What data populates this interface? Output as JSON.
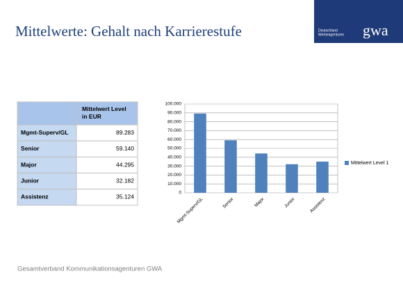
{
  "title": "Mittelwerte: Gehalt nach Karrierestufe",
  "logo": {
    "line1": "Deutschland",
    "line2": "Werbeagenturen",
    "mark": "gwa"
  },
  "table": {
    "header": [
      "",
      "Mittelwert Level in EUR"
    ],
    "rows": [
      [
        "Mgmt-Superv/GL",
        "89.283"
      ],
      [
        "Senior",
        "59.140"
      ],
      [
        "Major",
        "44.295"
      ],
      [
        "Junior",
        "32.182"
      ],
      [
        "Assistenz",
        "35.124"
      ]
    ]
  },
  "footer": "Gesamtverband Kommunikationsagenturen GWA",
  "chart_data": {
    "type": "bar",
    "categories": [
      "Mgmt-Superv/GL",
      "Senior",
      "Major",
      "Junior",
      "Assistenz"
    ],
    "series": [
      {
        "name": "Mittelwert Level 1",
        "color": "#4f81bd",
        "values": [
          89283,
          59140,
          44295,
          32182,
          35124
        ]
      }
    ],
    "ylim": [
      0,
      100000
    ],
    "yticks": [
      0,
      {
        "value": 10000,
        "label": "10.000"
      },
      {
        "value": 20000,
        "label": "20.000"
      },
      {
        "value": 30000,
        "label": "30.000"
      },
      {
        "value": 40000,
        "label": "40.000"
      },
      {
        "value": 50000,
        "label": "50.000"
      },
      {
        "value": 60000,
        "label": "60.000"
      },
      {
        "value": 70000,
        "label": "70.000"
      },
      {
        "value": 80000,
        "label": "80.000"
      },
      {
        "value": 90000,
        "label": "90.000"
      },
      {
        "value": 100000,
        "label": "100.000"
      }
    ],
    "grid": true,
    "legend": "right"
  }
}
